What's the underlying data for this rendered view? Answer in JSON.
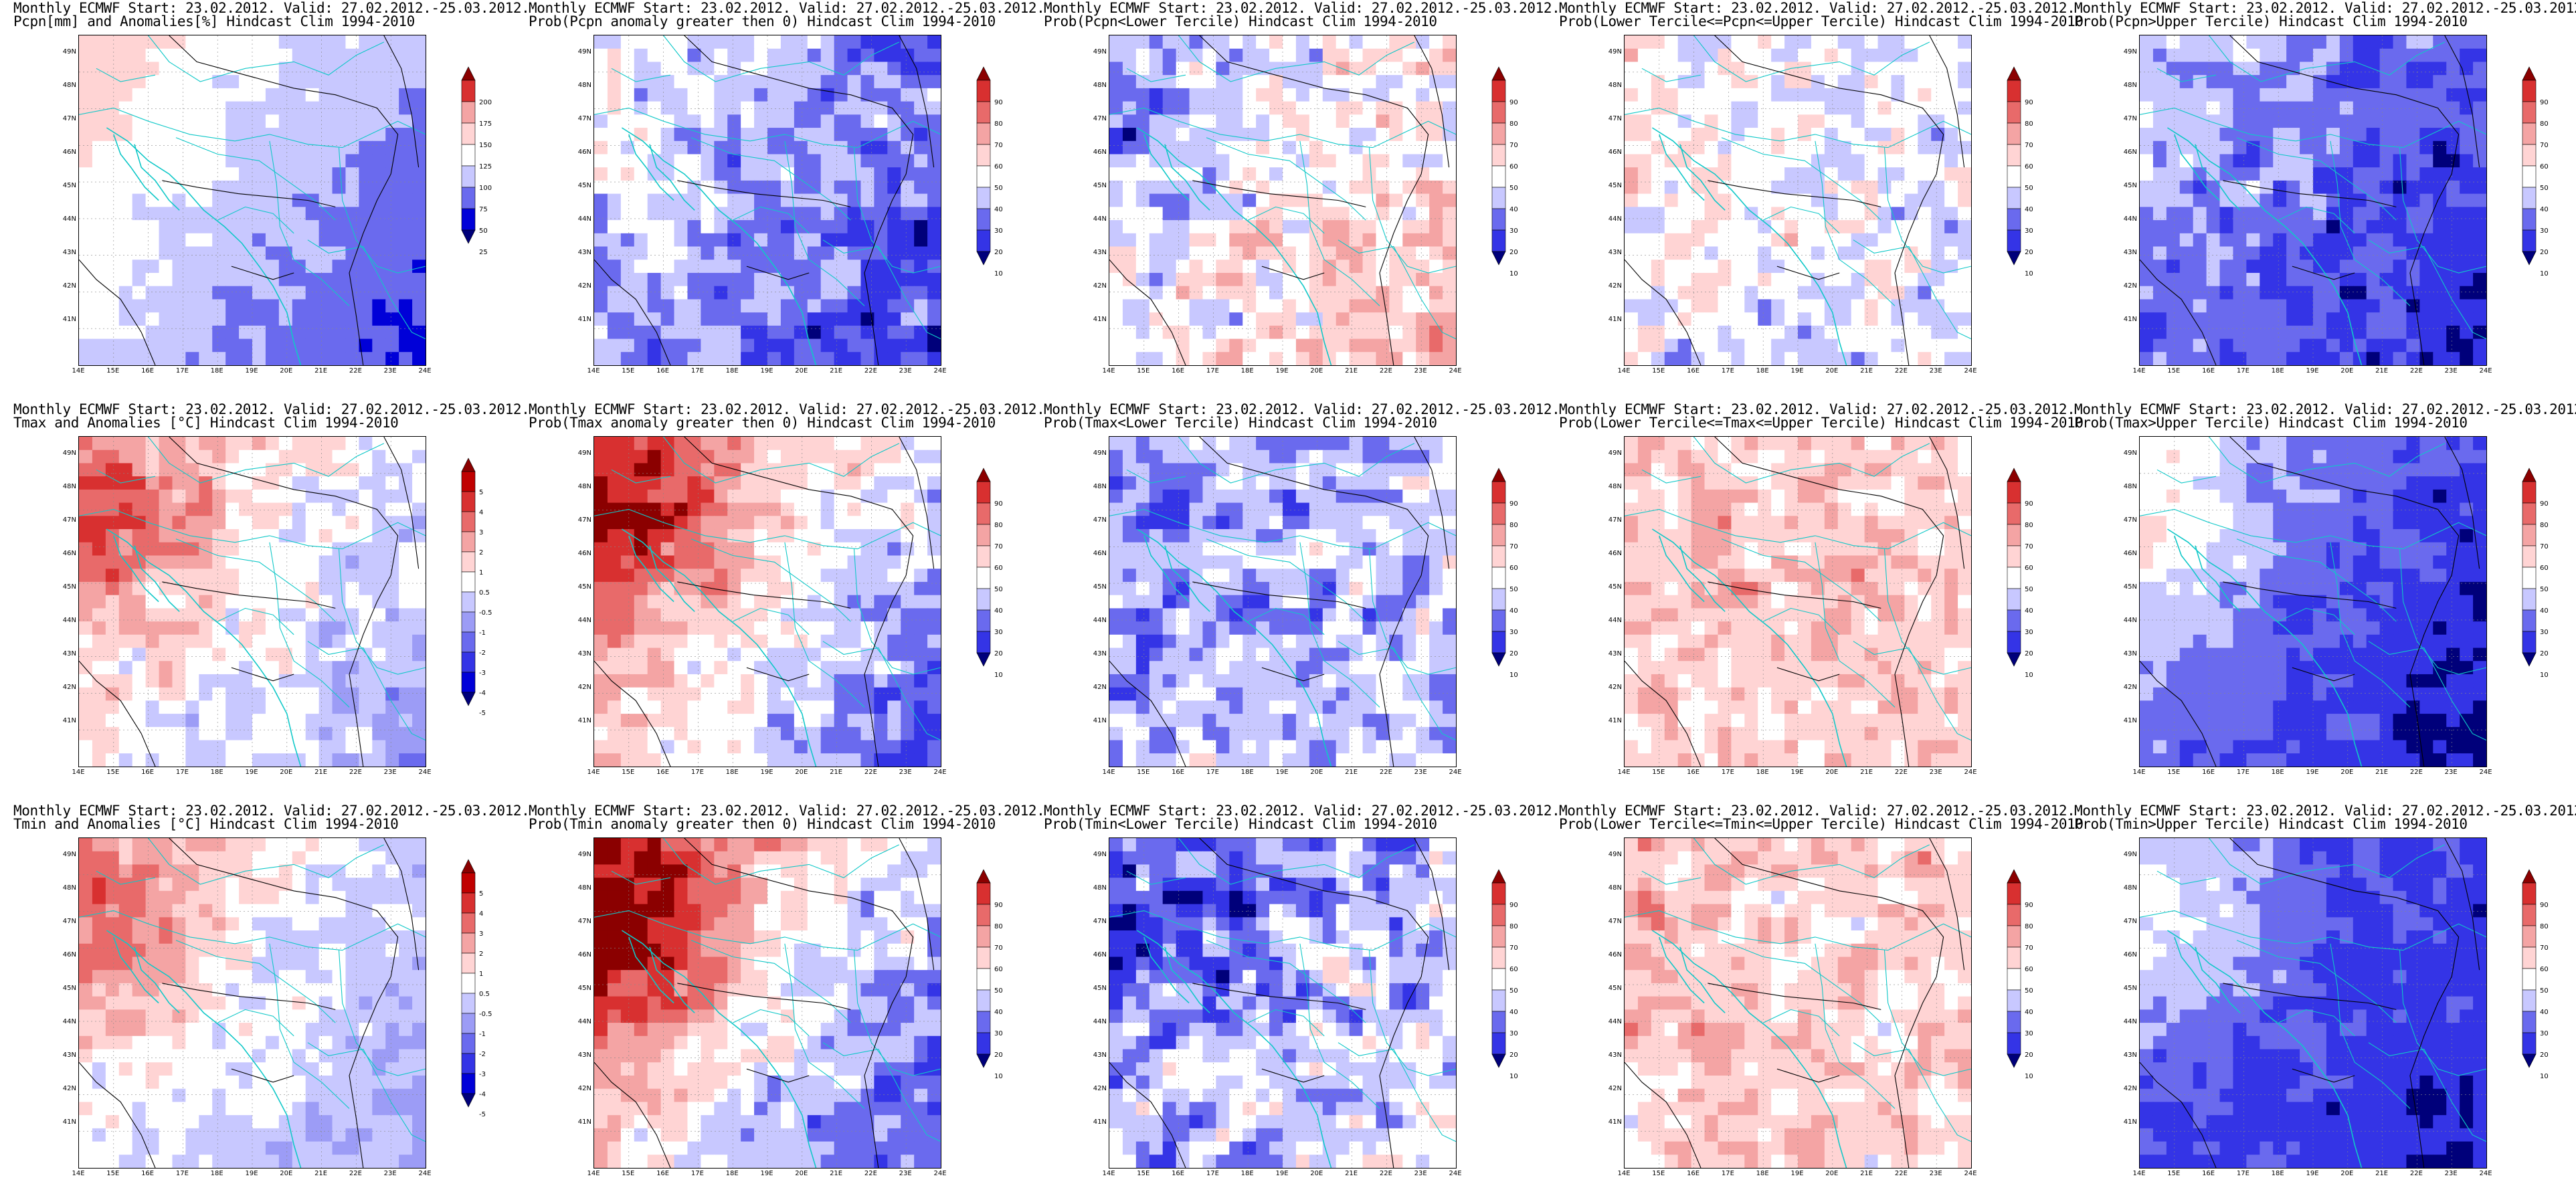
{
  "header_prefix": "Monthly ECMWF Start: 23.02.2012. Valid: 27.02.2012.-25.03.2012.",
  "hindcast_suffix": "Hindcast Clim 1994-2010",
  "lat_labels": [
    "49N",
    "48N",
    "47N",
    "46N",
    "45N",
    "44N",
    "43N",
    "42N",
    "41N"
  ],
  "lon_labels": [
    "14E",
    "15E",
    "16E",
    "17E",
    "18E",
    "19E",
    "20E",
    "21E",
    "22E",
    "23E",
    "24E"
  ],
  "palette": {
    "reds": [
      "#ffd4d4",
      "#f4a4a4",
      "#e86a6a",
      "#d83030",
      "#c00000",
      "#8b0000"
    ],
    "blues": [
      "#c8c8ff",
      "#9c9cf6",
      "#6a6aee",
      "#3434e6",
      "#0000d8",
      "#00007a"
    ],
    "coast": "#10c8c8",
    "contour": "#000000",
    "white": "#ffffff"
  },
  "colorbars": {
    "pcpn": {
      "labels": [
        "200",
        "175",
        "150",
        "125",
        "100",
        "75",
        "50",
        "25"
      ],
      "colors": [
        "#8b0000",
        "#d83030",
        "#f4a4a4",
        "#ffd4d4",
        "#ffffff",
        "#c8c8ff",
        "#6a6aee",
        "#0000d8",
        "#00007a"
      ]
    },
    "prob": {
      "labels": [
        "90",
        "80",
        "70",
        "60",
        "50",
        "40",
        "30",
        "20",
        "10"
      ],
      "colors": [
        "#8b0000",
        "#d83030",
        "#e86a6a",
        "#f4a4a4",
        "#ffd4d4",
        "#ffffff",
        "#c8c8ff",
        "#6a6aee",
        "#3434e6",
        "#00007a"
      ]
    },
    "anom": {
      "labels": [
        "5",
        "4",
        "3",
        "2",
        "1",
        "0.5",
        "-0.5",
        "-1",
        "-2",
        "-3",
        "-4",
        "-5"
      ],
      "colors": [
        "#8b0000",
        "#c00000",
        "#d83030",
        "#e86a6a",
        "#f4a4a4",
        "#ffd4d4",
        "#ffffff",
        "#c8c8ff",
        "#9c9cf6",
        "#6a6aee",
        "#3434e6",
        "#0000d8",
        "#00007a"
      ]
    }
  },
  "panels": [
    {
      "id": "pcpn-anomalies",
      "title2": "Pcpn[mm] and Anomalies[%] Hindcast Clim 1994-2010",
      "cbar": "pcpn",
      "field": {
        "base": -0.25,
        "gradient": -0.5,
        "noise": 0.08,
        "seed": 1,
        "bias_nw": 0.0
      }
    },
    {
      "id": "prob-pcpn-gt0",
      "title2": "Prob(Pcpn anomaly greater then 0) Hindcast Clim 1994-2010",
      "cbar": "prob",
      "field": {
        "base": -0.45,
        "gradient": -0.35,
        "noise": 0.22,
        "seed": 2,
        "bias_nw": 0.0
      }
    },
    {
      "id": "prob-pcpn-lower",
      "title2": "Prob(Pcpn<Lower Tercile) Hindcast Clim 1994-2010",
      "cbar": "prob",
      "field": {
        "base": -0.05,
        "gradient": 0.3,
        "noise": 0.25,
        "seed": 3,
        "bias_nw": -0.2
      }
    },
    {
      "id": "prob-pcpn-middle",
      "title2": "Prob(Lower Tercile<=Pcpn<=Upper Tercile) Hindcast Clim 1994-2010",
      "cbar": "prob",
      "field": {
        "base": -0.15,
        "gradient": -0.1,
        "noise": 0.22,
        "seed": 4,
        "bias_nw": 0.0
      }
    },
    {
      "id": "prob-pcpn-upper",
      "title2": "Prob(Pcpn>Upper Tercile) Hindcast Clim 1994-2010",
      "cbar": "prob",
      "field": {
        "base": -0.6,
        "gradient": -0.3,
        "noise": 0.18,
        "seed": 5,
        "bias_nw": 0.0
      }
    },
    {
      "id": "tmax-anomalies",
      "title2": "Tmax and Anomalies [°C] Hindcast Clim 1994-2010",
      "cbar": "anom",
      "field": {
        "base": 0.0,
        "gradient": -0.35,
        "noise": 0.15,
        "seed": 6,
        "bias_nw": 0.35
      }
    },
    {
      "id": "prob-tmax-gt0",
      "title2": "Prob(Tmax anomaly greater then 0) Hindcast Clim 1994-2010",
      "cbar": "prob",
      "field": {
        "base": -0.05,
        "gradient": -0.7,
        "noise": 0.2,
        "seed": 7,
        "bias_nw": 0.55
      }
    },
    {
      "id": "prob-tmax-lower",
      "title2": "Prob(Tmax<Lower Tercile) Hindcast Clim 1994-2010",
      "cbar": "prob",
      "field": {
        "base": -0.35,
        "gradient": 0.1,
        "noise": 0.25,
        "seed": 8,
        "bias_nw": -0.1
      }
    },
    {
      "id": "prob-tmax-middle",
      "title2": "Prob(Lower Tercile<=Tmax<=Upper Tercile) Hindcast Clim 1994-2010",
      "cbar": "prob",
      "field": {
        "base": 0.12,
        "gradient": 0.0,
        "noise": 0.2,
        "seed": 9,
        "bias_nw": 0.05
      }
    },
    {
      "id": "prob-tmax-upper",
      "title2": "Prob(Tmax>Upper Tercile) Hindcast Clim 1994-2010",
      "cbar": "prob",
      "field": {
        "base": -0.65,
        "gradient": -0.35,
        "noise": 0.12,
        "seed": 10,
        "bias_nw": 0.4
      }
    },
    {
      "id": "tmin-anomalies",
      "title2": "Tmin and Anomalies [°C] Hindcast Clim 1994-2010",
      "cbar": "anom",
      "field": {
        "base": -0.05,
        "gradient": -0.3,
        "noise": 0.12,
        "seed": 11,
        "bias_nw": 0.35
      }
    },
    {
      "id": "prob-tmin-gt0",
      "title2": "Prob(Tmin anomaly greater then 0) Hindcast Clim 1994-2010",
      "cbar": "prob",
      "field": {
        "base": -0.1,
        "gradient": -0.75,
        "noise": 0.2,
        "seed": 12,
        "bias_nw": 0.75
      }
    },
    {
      "id": "prob-tmin-lower",
      "title2": "Prob(Tmin<Lower Tercile) Hindcast Clim 1994-2010",
      "cbar": "prob",
      "field": {
        "base": -0.35,
        "gradient": 0.2,
        "noise": 0.3,
        "seed": 13,
        "bias_nw": -0.25
      }
    },
    {
      "id": "prob-tmin-middle",
      "title2": "Prob(Lower Tercile<=Tmin<=Upper Tercile) Hindcast Clim 1994-2010",
      "cbar": "prob",
      "field": {
        "base": 0.1,
        "gradient": 0.0,
        "noise": 0.2,
        "seed": 14,
        "bias_nw": 0.1
      }
    },
    {
      "id": "prob-tmin-upper",
      "title2": "Prob(Tmin>Upper Tercile) Hindcast Clim 1994-2010",
      "cbar": "prob",
      "field": {
        "base": -0.7,
        "gradient": -0.2,
        "noise": 0.1,
        "seed": 15,
        "bias_nw": 0.45
      }
    }
  ]
}
